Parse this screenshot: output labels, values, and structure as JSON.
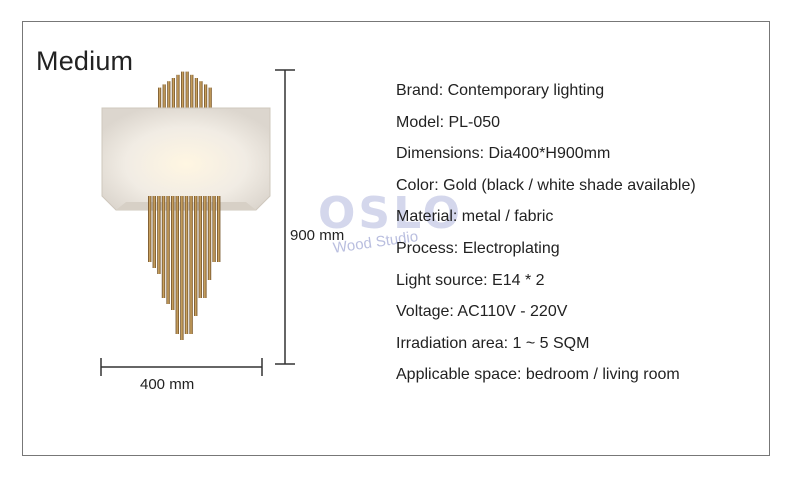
{
  "title": "Medium",
  "dimensions": {
    "height_label": "900 mm",
    "width_label": "400 mm"
  },
  "watermark": {
    "main": "OSLO",
    "sub": "Wood Studio"
  },
  "specs": [
    "Brand: Contemporary lighting",
    "Model: PL-050",
    "Dimensions: Dia400*H900mm",
    "Color: Gold (black / white shade available)",
    "Material: metal / fabric",
    "Process: Electroplating",
    "Light source: E14 * 2",
    "Voltage: AC110V - 220V",
    "Irradiation area: 1 ~ 5 SQM",
    "Applicable space: bedroom / living room"
  ],
  "colors": {
    "gold": "#b38b4d",
    "shade": "#f3f1ee",
    "frame": "#777777",
    "watermark": "#646eb9"
  }
}
